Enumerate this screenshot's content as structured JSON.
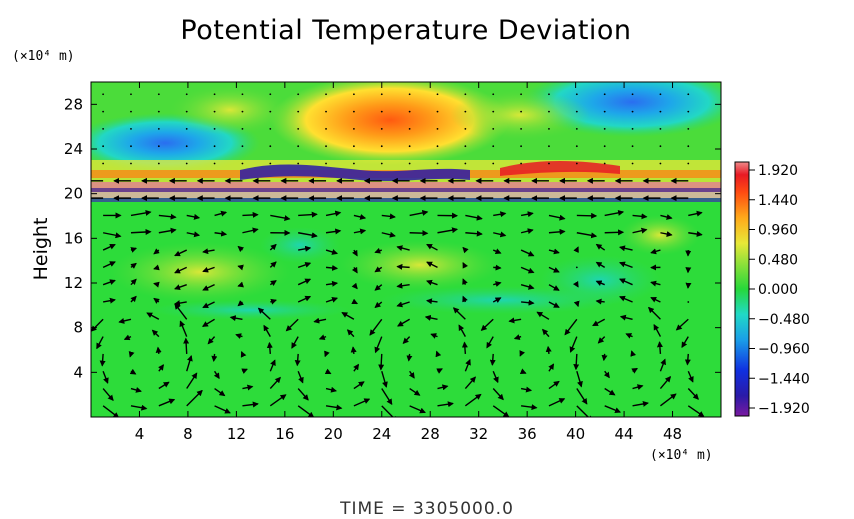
{
  "chart_data": {
    "type": "heatmap",
    "title": "Potential Temperature Deviation",
    "ylabel": "Height",
    "x_unit": "(×10⁴ m)",
    "y_unit": "(×10⁴ m)",
    "xlim": [
      0,
      52
    ],
    "ylim": [
      0,
      30
    ],
    "x_ticks": [
      "4",
      "8",
      "12",
      "16",
      "20",
      "24",
      "28",
      "32",
      "36",
      "40",
      "44",
      "48"
    ],
    "y_ticks": [
      "4",
      "8",
      "12",
      "16",
      "20",
      "24",
      "28"
    ],
    "colorbar": {
      "min": -1.92,
      "max": 1.92,
      "ticks": [
        "1.920",
        "1.440",
        "0.960",
        "0.480",
        "0.000",
        "−0.480",
        "−0.960",
        "−1.440",
        "−1.920"
      ]
    },
    "features": [
      {
        "kind": "warm anomaly",
        "x": 23.5,
        "y": 26.5,
        "value": 1.4
      },
      {
        "kind": "cold anomaly",
        "x": 45.5,
        "y": 28.0,
        "value": -0.9
      },
      {
        "kind": "cold anomaly",
        "x": 7.5,
        "y": 24.5,
        "value": -0.9
      },
      {
        "kind": "inversion band",
        "y_range": [
          19.5,
          22.5
        ]
      }
    ],
    "vectors": "wind field shown as arrows; rightward flow near 16–18, circulation cells below 10",
    "footer": "TIME  =  3305000.0",
    "colors": {
      "background_field": "#2ddc3a",
      "warm": "#ff7a12",
      "cold": "#1aa8e6",
      "arrows": "#000000"
    }
  }
}
